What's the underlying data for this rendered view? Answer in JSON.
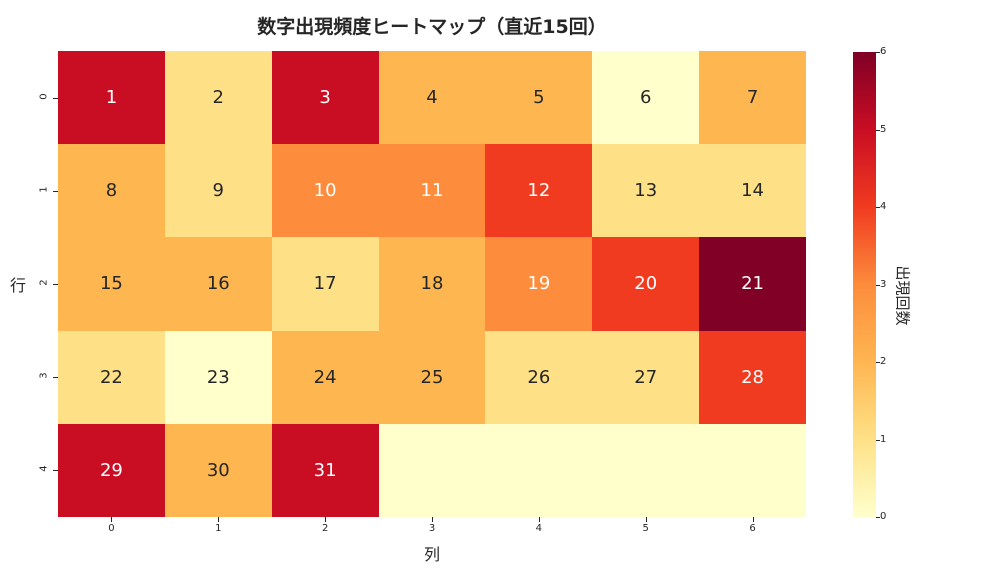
{
  "chart_data": {
    "type": "heatmap",
    "title": "数字出現頻度ヒートマップ（直近15回）",
    "xlabel": "列",
    "ylabel": "行",
    "colorbar_label": "出現回数",
    "colormap": "YlOrRd",
    "vmin": 0,
    "vmax": 6,
    "x_ticks": [
      "0",
      "1",
      "2",
      "3",
      "4",
      "5",
      "6"
    ],
    "y_ticks": [
      "0",
      "1",
      "2",
      "3",
      "4"
    ],
    "colorbar_ticks": [
      "0",
      "1",
      "2",
      "3",
      "4",
      "5",
      "6"
    ],
    "annotations": [
      [
        "1",
        "2",
        "3",
        "4",
        "5",
        "6",
        "7"
      ],
      [
        "8",
        "9",
        "10",
        "11",
        "12",
        "13",
        "14"
      ],
      [
        "15",
        "16",
        "17",
        "18",
        "19",
        "20",
        "21"
      ],
      [
        "22",
        "23",
        "24",
        "25",
        "26",
        "27",
        "28"
      ],
      [
        "29",
        "30",
        "31",
        "",
        "",
        "",
        ""
      ]
    ],
    "values": [
      [
        5,
        1,
        5,
        2,
        2,
        0,
        2
      ],
      [
        2,
        1,
        3,
        3,
        4,
        1,
        1
      ],
      [
        2,
        2,
        1,
        2,
        3,
        4,
        6
      ],
      [
        1,
        0,
        2,
        2,
        1,
        1,
        4
      ],
      [
        5,
        2,
        5,
        0,
        0,
        0,
        0
      ]
    ],
    "grid": false,
    "legend_position": "right (colorbar)"
  },
  "colors": {
    "scale": [
      "#ffffcc",
      "#fee187",
      "#feb651",
      "#fd8c3c",
      "#f03b20",
      "#c90d23",
      "#800026"
    ],
    "text_dark": "#262626",
    "text_light": "#ffffff"
  }
}
